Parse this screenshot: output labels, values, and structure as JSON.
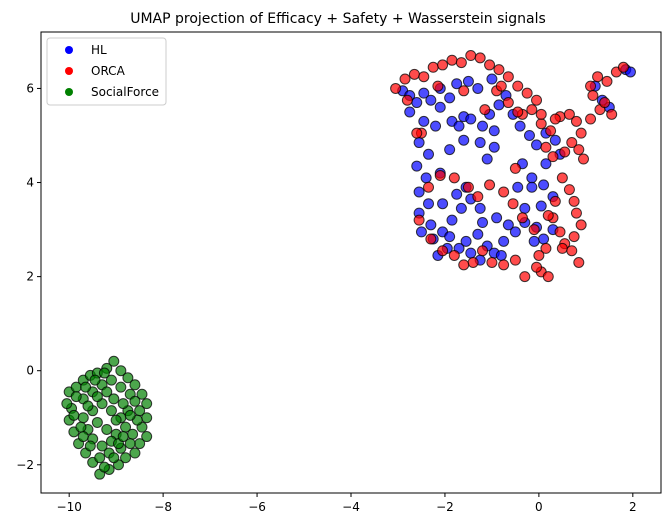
{
  "chart_data": {
    "type": "scatter",
    "title": "UMAP projection of Efficacy + Safety + Wasserstein signals",
    "xlabel": "",
    "ylabel": "",
    "xlim": [
      -10.6,
      2.6
    ],
    "ylim": [
      -2.6,
      7.2
    ],
    "xticks": [
      -10,
      -8,
      -6,
      -4,
      -2,
      0,
      2
    ],
    "yticks": [
      -2,
      0,
      2,
      4,
      6
    ],
    "xtick_labels": [
      "−10",
      "−8",
      "−6",
      "−4",
      "−2",
      "0",
      "2"
    ],
    "ytick_labels": [
      "−2",
      "0",
      "2",
      "4",
      "6"
    ],
    "grid": false,
    "legend_position": "upper-left",
    "series": [
      {
        "name": "HL",
        "color": "#0000ff",
        "points": [
          [
            -2.9,
            5.95
          ],
          [
            -2.75,
            5.85
          ],
          [
            -2.6,
            5.7
          ],
          [
            -2.45,
            5.9
          ],
          [
            -2.3,
            5.75
          ],
          [
            -2.1,
            6.0
          ],
          [
            -1.9,
            5.8
          ],
          [
            -1.75,
            6.1
          ],
          [
            -1.5,
            6.15
          ],
          [
            -1.3,
            6.0
          ],
          [
            -1.6,
            5.4
          ],
          [
            -1.85,
            5.3
          ],
          [
            -1.45,
            5.35
          ],
          [
            -1.2,
            5.2
          ],
          [
            -1.05,
            5.45
          ],
          [
            -0.95,
            5.1
          ],
          [
            -2.2,
            5.2
          ],
          [
            -2.45,
            5.3
          ],
          [
            -2.55,
            4.85
          ],
          [
            -2.35,
            4.6
          ],
          [
            -2.6,
            4.35
          ],
          [
            -2.4,
            4.1
          ],
          [
            -2.1,
            4.2
          ],
          [
            -1.9,
            4.7
          ],
          [
            -1.6,
            4.9
          ],
          [
            -1.25,
            4.85
          ],
          [
            -0.95,
            4.75
          ],
          [
            -1.1,
            4.5
          ],
          [
            -0.55,
            5.45
          ],
          [
            -0.4,
            5.2
          ],
          [
            -0.2,
            5.0
          ],
          [
            -0.05,
            4.8
          ],
          [
            0.15,
            5.05
          ],
          [
            0.35,
            4.9
          ],
          [
            0.45,
            4.6
          ],
          [
            -0.35,
            4.4
          ],
          [
            -0.15,
            4.1
          ],
          [
            0.1,
            3.95
          ],
          [
            0.3,
            3.7
          ],
          [
            -0.45,
            3.9
          ],
          [
            -2.55,
            3.8
          ],
          [
            -2.35,
            3.55
          ],
          [
            -2.55,
            3.35
          ],
          [
            -2.3,
            3.1
          ],
          [
            -2.5,
            2.95
          ],
          [
            -2.25,
            2.8
          ],
          [
            -2.05,
            2.95
          ],
          [
            -1.85,
            3.2
          ],
          [
            -1.65,
            3.45
          ],
          [
            -1.45,
            3.65
          ],
          [
            -1.25,
            3.45
          ],
          [
            -1.75,
            3.75
          ],
          [
            -1.55,
            3.9
          ],
          [
            -2.05,
            3.55
          ],
          [
            -1.9,
            2.85
          ],
          [
            -1.7,
            2.6
          ],
          [
            -1.55,
            2.75
          ],
          [
            -1.3,
            2.9
          ],
          [
            -1.1,
            2.65
          ],
          [
            -0.95,
            2.5
          ],
          [
            -0.75,
            2.75
          ],
          [
            -0.5,
            2.95
          ],
          [
            -0.3,
            3.15
          ],
          [
            -0.65,
            3.1
          ],
          [
            -0.9,
            3.25
          ],
          [
            -1.2,
            3.15
          ],
          [
            -0.05,
            3.05
          ],
          [
            0.1,
            2.8
          ],
          [
            0.3,
            3.0
          ],
          [
            -0.1,
            2.75
          ],
          [
            -2.15,
            2.45
          ],
          [
            -1.95,
            2.6
          ],
          [
            -1.45,
            2.5
          ],
          [
            -1.25,
            2.35
          ],
          [
            -0.8,
            2.45
          ],
          [
            -0.15,
            3.9
          ],
          [
            0.05,
            3.5
          ],
          [
            -0.3,
            3.45
          ],
          [
            1.2,
            6.05
          ],
          [
            1.35,
            5.75
          ],
          [
            1.5,
            5.6
          ],
          [
            1.85,
            6.4
          ],
          [
            1.95,
            6.35
          ],
          [
            -1.0,
            6.2
          ],
          [
            -0.7,
            5.85
          ],
          [
            -0.85,
            5.65
          ],
          [
            0.15,
            4.4
          ],
          [
            -2.1,
            5.6
          ],
          [
            -2.75,
            5.5
          ],
          [
            -1.7,
            5.2
          ]
        ]
      },
      {
        "name": "ORCA",
        "color": "#ff0000",
        "points": [
          [
            -3.05,
            6.0
          ],
          [
            -2.85,
            6.2
          ],
          [
            -2.65,
            6.3
          ],
          [
            -2.45,
            6.25
          ],
          [
            -2.25,
            6.45
          ],
          [
            -2.05,
            6.5
          ],
          [
            -1.85,
            6.6
          ],
          [
            -1.65,
            6.55
          ],
          [
            -1.45,
            6.7
          ],
          [
            -1.25,
            6.65
          ],
          [
            -1.05,
            6.5
          ],
          [
            -0.85,
            6.4
          ],
          [
            -0.65,
            6.25
          ],
          [
            -0.45,
            6.05
          ],
          [
            -0.25,
            5.9
          ],
          [
            -0.05,
            5.75
          ],
          [
            -0.15,
            5.55
          ],
          [
            -0.35,
            5.45
          ],
          [
            0.05,
            5.25
          ],
          [
            0.25,
            5.1
          ],
          [
            0.45,
            5.4
          ],
          [
            0.65,
            5.45
          ],
          [
            0.8,
            5.3
          ],
          [
            0.9,
            5.05
          ],
          [
            0.7,
            4.85
          ],
          [
            0.55,
            4.65
          ],
          [
            0.85,
            4.7
          ],
          [
            0.95,
            4.5
          ],
          [
            -2.5,
            5.05
          ],
          [
            -0.5,
            4.3
          ],
          [
            0.5,
            4.1
          ],
          [
            0.65,
            3.85
          ],
          [
            0.75,
            3.6
          ],
          [
            0.8,
            3.35
          ],
          [
            0.9,
            3.1
          ],
          [
            0.75,
            2.85
          ],
          [
            0.55,
            2.7
          ],
          [
            0.45,
            2.95
          ],
          [
            0.3,
            3.25
          ],
          [
            0.15,
            2.6
          ],
          [
            0.0,
            2.45
          ],
          [
            0.05,
            2.1
          ],
          [
            0.2,
            2.0
          ],
          [
            0.5,
            2.6
          ],
          [
            0.7,
            2.55
          ],
          [
            0.85,
            2.3
          ],
          [
            -0.05,
            2.2
          ],
          [
            -0.3,
            2.0
          ],
          [
            -0.5,
            2.35
          ],
          [
            -0.75,
            2.25
          ],
          [
            -1.0,
            2.3
          ],
          [
            -1.2,
            2.55
          ],
          [
            -1.4,
            2.3
          ],
          [
            -1.6,
            2.25
          ],
          [
            -1.8,
            2.45
          ],
          [
            -2.05,
            2.55
          ],
          [
            -2.3,
            2.8
          ],
          [
            -2.55,
            3.2
          ],
          [
            -2.35,
            3.9
          ],
          [
            -2.1,
            4.15
          ],
          [
            -1.8,
            4.1
          ],
          [
            -1.5,
            3.9
          ],
          [
            -1.3,
            3.7
          ],
          [
            -1.05,
            3.95
          ],
          [
            -0.75,
            3.8
          ],
          [
            -0.55,
            3.55
          ],
          [
            -0.35,
            3.25
          ],
          [
            -0.1,
            3.0
          ],
          [
            0.2,
            3.3
          ],
          [
            0.35,
            3.6
          ],
          [
            1.1,
            6.05
          ],
          [
            1.25,
            6.25
          ],
          [
            1.45,
            6.15
          ],
          [
            1.65,
            6.35
          ],
          [
            1.8,
            6.45
          ],
          [
            1.15,
            5.85
          ],
          [
            1.3,
            5.55
          ],
          [
            1.55,
            5.45
          ],
          [
            1.1,
            5.35
          ],
          [
            1.4,
            5.7
          ],
          [
            -0.9,
            5.95
          ],
          [
            -0.65,
            5.7
          ],
          [
            -0.45,
            5.5
          ],
          [
            0.05,
            5.45
          ],
          [
            0.35,
            5.35
          ],
          [
            0.15,
            4.75
          ],
          [
            0.3,
            4.55
          ],
          [
            -1.15,
            5.55
          ],
          [
            -2.15,
            6.05
          ],
          [
            -2.8,
            5.75
          ],
          [
            -2.6,
            5.05
          ],
          [
            -0.8,
            6.05
          ],
          [
            -1.6,
            5.95
          ]
        ]
      },
      {
        "name": "SocialForce",
        "color": "#008000",
        "points": [
          [
            -10.0,
            -0.45
          ],
          [
            -9.85,
            -0.35
          ],
          [
            -9.7,
            -0.2
          ],
          [
            -9.55,
            -0.1
          ],
          [
            -9.4,
            -0.05
          ],
          [
            -9.2,
            0.05
          ],
          [
            -9.05,
            0.2
          ],
          [
            -8.9,
            0.0
          ],
          [
            -8.75,
            -0.15
          ],
          [
            -8.6,
            -0.3
          ],
          [
            -8.45,
            -0.5
          ],
          [
            -8.35,
            -0.7
          ],
          [
            -8.5,
            -0.85
          ],
          [
            -8.35,
            -1.0
          ],
          [
            -8.45,
            -1.2
          ],
          [
            -8.35,
            -1.4
          ],
          [
            -8.5,
            -1.55
          ],
          [
            -8.6,
            -1.75
          ],
          [
            -8.8,
            -1.85
          ],
          [
            -8.95,
            -2.0
          ],
          [
            -9.15,
            -2.1
          ],
          [
            -9.35,
            -2.2
          ],
          [
            -9.5,
            -1.95
          ],
          [
            -9.65,
            -1.75
          ],
          [
            -9.8,
            -1.55
          ],
          [
            -9.9,
            -1.3
          ],
          [
            -10.0,
            -1.05
          ],
          [
            -9.95,
            -0.8
          ],
          [
            -9.7,
            -0.6
          ],
          [
            -9.5,
            -0.45
          ],
          [
            -9.3,
            -0.3
          ],
          [
            -9.1,
            -0.2
          ],
          [
            -8.9,
            -0.35
          ],
          [
            -8.7,
            -0.5
          ],
          [
            -8.6,
            -0.65
          ],
          [
            -8.75,
            -0.85
          ],
          [
            -8.9,
            -1.0
          ],
          [
            -9.1,
            -0.85
          ],
          [
            -9.3,
            -0.7
          ],
          [
            -9.5,
            -0.85
          ],
          [
            -9.7,
            -1.0
          ],
          [
            -9.6,
            -1.25
          ],
          [
            -9.4,
            -1.1
          ],
          [
            -9.2,
            -1.25
          ],
          [
            -9.0,
            -1.35
          ],
          [
            -8.8,
            -1.2
          ],
          [
            -8.65,
            -1.35
          ],
          [
            -8.7,
            -1.55
          ],
          [
            -8.9,
            -1.65
          ],
          [
            -9.1,
            -1.5
          ],
          [
            -9.3,
            -1.6
          ],
          [
            -9.5,
            -1.45
          ],
          [
            -9.7,
            -1.4
          ],
          [
            -9.35,
            -1.85
          ],
          [
            -9.15,
            -1.75
          ],
          [
            -8.95,
            -1.55
          ],
          [
            -9.45,
            -0.2
          ],
          [
            -9.65,
            -0.35
          ],
          [
            -9.85,
            -0.55
          ],
          [
            -10.05,
            -0.7
          ],
          [
            -9.9,
            -0.95
          ],
          [
            -9.25,
            -0.05
          ],
          [
            -8.85,
            -0.7
          ],
          [
            -8.55,
            -1.05
          ],
          [
            -9.0,
            -1.05
          ],
          [
            -9.2,
            -0.45
          ],
          [
            -9.4,
            -0.55
          ],
          [
            -9.6,
            -0.75
          ],
          [
            -9.75,
            -1.2
          ],
          [
            -9.55,
            -1.6
          ],
          [
            -9.25,
            -2.05
          ],
          [
            -9.05,
            -1.85
          ],
          [
            -8.85,
            -1.4
          ],
          [
            -9.05,
            -0.6
          ],
          [
            -8.7,
            -0.95
          ]
        ]
      }
    ]
  }
}
